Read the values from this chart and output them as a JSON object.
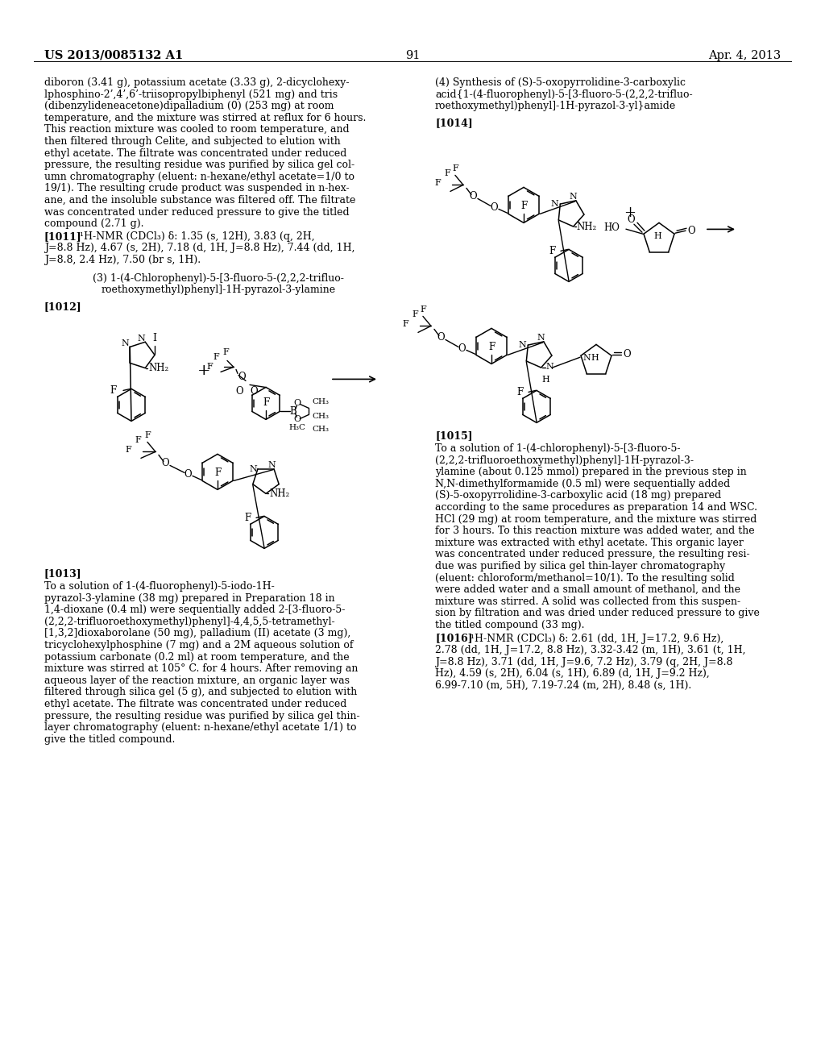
{
  "page_header_left": "US 2013/0085132 A1",
  "page_header_right": "Apr. 4, 2013",
  "page_number": "91",
  "background_color": "#ffffff",
  "left_col_lines": [
    "diboron (3.41 g), potassium acetate (3.33 g), 2-dicyclohexy-",
    "lphosphino-2’,4’,6’-triisopropylbiphenyl (521 mg) and tris",
    "(dibenzylideneacetone)dipalladium (0) (253 mg) at room",
    "temperature, and the mixture was stirred at reflux for 6 hours.",
    "This reaction mixture was cooled to room temperature, and",
    "then filtered through Celite, and subjected to elution with",
    "ethyl acetate. The filtrate was concentrated under reduced",
    "pressure, the resulting residue was purified by silica gel col-",
    "umn chromatography (eluent: n-hexane/ethyl acetate=1/0 to",
    "19/1). The resulting crude product was suspended in n-hex-",
    "ane, and the insoluble substance was filtered off. The filtrate",
    "was concentrated under reduced pressure to give the titled",
    "compound (2.71 g)."
  ],
  "nmr1011_bold": "[1011]",
  "nmr1011_rest_line1": "  ¹H-NMR (CDCl₃) δ: 1.35 (s, 12H), 3.83 (q, 2H,",
  "nmr1011_line2": "J=8.8 Hz), 4.67 (s, 2H), 7.18 (d, 1H, J=8.8 Hz), 7.44 (dd, 1H,",
  "nmr1011_line3": "J=8.8, 2.4 Hz), 7.50 (br s, 1H).",
  "sec3_line1": "(3) 1-(4-Chlorophenyl)-5-[3-fluoro-5-(2,2,2-trifluo-",
  "sec3_line2": "roethoxymethyl)phenyl]-1H-pyrazol-3-ylamine",
  "lbl1012": "[1012]",
  "lbl1013": "[1013]",
  "lbl1014": "[1014]",
  "lbl1015": "[1015]",
  "lbl1016": "[1016]",
  "sec4_line1": "(4) Synthesis of (S)-5-oxopyrrolidine-3-carboxylic",
  "sec4_line2": "acid{1-(4-fluorophenyl)-5-[3-fluoro-5-(2,2,2-trifluo-",
  "sec4_line3": "roethoxymethyl)phenyl]-1H-pyrazol-3-yl}amide",
  "text1013_lines": [
    "To a solution of 1-(4-fluorophenyl)-5-iodo-1H-",
    "pyrazol-3-ylamine (38 mg) prepared in Preparation 18 in",
    "1,4-dioxane (0.4 ml) were sequentially added 2-[3-fluoro-5-",
    "(2,2,2-trifluoroethoxymethyl)phenyl]-4,4,5,5-tetramethyl-",
    "[1,3,2]dioxaborolane (50 mg), palladium (II) acetate (3 mg),",
    "tricyclohexylphosphine (7 mg) and a 2M aqueous solution of",
    "potassium carbonate (0.2 ml) at room temperature, and the",
    "mixture was stirred at 105° C. for 4 hours. After removing an",
    "aqueous layer of the reaction mixture, an organic layer was",
    "filtered through silica gel (5 g), and subjected to elution with",
    "ethyl acetate. The filtrate was concentrated under reduced",
    "pressure, the resulting residue was purified by silica gel thin-",
    "layer chromatography (eluent: n-hexane/ethyl acetate 1/1) to",
    "give the titled compound."
  ],
  "text1015_lines": [
    "To a solution of 1-(4-chlorophenyl)-5-[3-fluoro-5-",
    "(2,2,2-trifluoroethoxymethyl)phenyl]-1H-pyrazol-3-",
    "ylamine (about 0.125 mmol) prepared in the previous step in",
    "N,N-dimethylformamide (0.5 ml) were sequentially added",
    "(S)-5-oxopyrrolidine-3-carboxylic acid (18 mg) prepared",
    "according to the same procedures as preparation 14 and WSC.",
    "HCl (29 mg) at room temperature, and the mixture was stirred",
    "for 3 hours. To this reaction mixture was added water, and the",
    "mixture was extracted with ethyl acetate. This organic layer",
    "was concentrated under reduced pressure, the resulting resi-",
    "due was purified by silica gel thin-layer chromatography",
    "(eluent: chloroform/methanol=10/1). To the resulting solid",
    "were added water and a small amount of methanol, and the",
    "mixture was stirred. A solid was collected from this suspen-",
    "sion by filtration and was dried under reduced pressure to give",
    "the titled compound (33 mg)."
  ],
  "nmr1016_bold": "[1016]",
  "nmr1016_line1": "  ¹H-NMR (CDCl₃) δ: 2.61 (dd, 1H, J=17.2, 9.6 Hz),",
  "nmr1016_line2": "2.78 (dd, 1H, J=17.2, 8.8 Hz), 3.32-3.42 (m, 1H), 3.61 (t, 1H,",
  "nmr1016_line3": "J=8.8 Hz), 3.71 (dd, 1H, J=9.6, 7.2 Hz), 3.79 (q, 2H, J=8.8",
  "nmr1016_line4": "Hz), 4.59 (s, 2H), 6.04 (s, 1H), 6.89 (d, 1H, J=9.2 Hz),",
  "nmr1016_line5": "6.99-7.10 (m, 5H), 7.19-7.24 (m, 2H), 8.48 (s, 1H)."
}
